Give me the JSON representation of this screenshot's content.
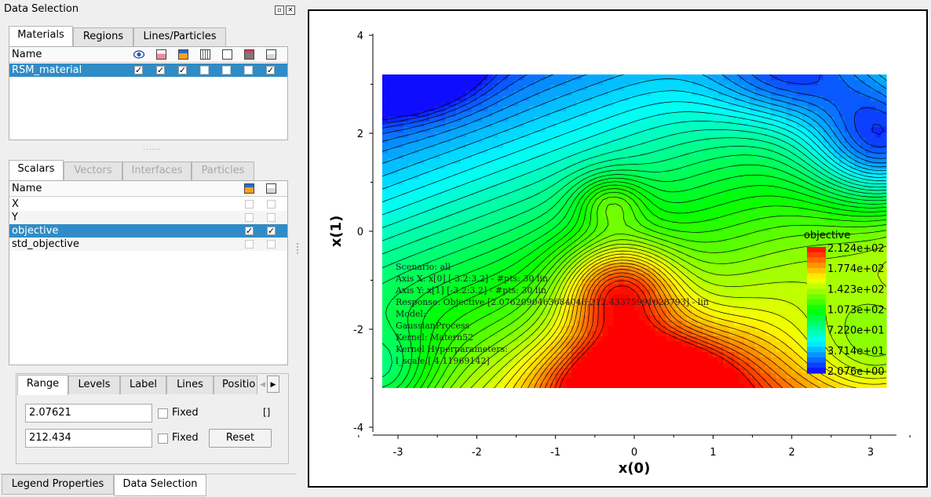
{
  "panel": {
    "title": "Data Selection",
    "float_icon": "float-icon",
    "close_icon": "close-icon"
  },
  "top_tabs": [
    {
      "label": "Materials",
      "active": true
    },
    {
      "label": "Regions",
      "active": false
    },
    {
      "label": "Lines/Particles",
      "active": false
    }
  ],
  "materials_table": {
    "header_name": "Name",
    "header_icons": [
      "eye-icon",
      "pink-box-icon",
      "orange-box-icon",
      "lattice-box-icon",
      "empty-box-icon",
      "stack-box-icon",
      "export-box-icon"
    ],
    "rows": [
      {
        "name": "RSM_material",
        "checks": [
          true,
          true,
          true,
          false,
          false,
          false,
          true
        ],
        "selected": true
      }
    ]
  },
  "splitter_grip": "......",
  "mid_tabs": [
    {
      "label": "Scalars",
      "active": true,
      "disabled": false
    },
    {
      "label": "Vectors",
      "active": false,
      "disabled": true
    },
    {
      "label": "Interfaces",
      "active": false,
      "disabled": true
    },
    {
      "label": "Particles",
      "active": false,
      "disabled": true
    }
  ],
  "scalars_table": {
    "header_name": "Name",
    "header_icons": [
      "orange-box-icon",
      "export-box-icon"
    ],
    "rows": [
      {
        "name": "X",
        "checks": [
          false,
          false
        ],
        "selected": false
      },
      {
        "name": "Y",
        "checks": [
          false,
          false
        ],
        "selected": false
      },
      {
        "name": "objective",
        "checks": [
          true,
          true
        ],
        "selected": true
      },
      {
        "name": "std_objective",
        "checks": [
          false,
          false
        ],
        "selected": false
      }
    ]
  },
  "range_tabs": [
    {
      "label": "Range",
      "active": true
    },
    {
      "label": "Levels",
      "active": false
    },
    {
      "label": "Label",
      "active": false
    },
    {
      "label": "Lines",
      "active": false
    },
    {
      "label": "Positio",
      "active": false
    }
  ],
  "range": {
    "min_value": "2.07621",
    "max_value": "212.434",
    "fixed_label": "Fixed",
    "min_fixed": false,
    "max_fixed": false,
    "brackets": "[]",
    "reset_label": "Reset"
  },
  "bottom_tabs": [
    {
      "label": "Legend Properties",
      "active": false
    },
    {
      "label": "Data Selection",
      "active": true
    }
  ],
  "chart_data": {
    "type": "heatmap",
    "subtype": "filled contour",
    "title": "",
    "xlabel": "x(0)",
    "ylabel": "x(1)",
    "xlim": [
      -3.2,
      3.2
    ],
    "ylim": [
      -4,
      4
    ],
    "data_extent": {
      "x": [
        -3.2,
        3.2
      ],
      "y": [
        -3.2,
        3.2
      ]
    },
    "xticks": [
      -3,
      -2,
      -1,
      0,
      1,
      2,
      3
    ],
    "yticks": [
      -4,
      -2,
      0,
      2,
      4
    ],
    "grid": false,
    "colormap": [
      "#1000ff",
      "#00ffff",
      "#00ff00",
      "#ffff00",
      "#ff0000"
    ],
    "value_range": [
      2.076,
      212.4
    ],
    "legend": {
      "title": "objective",
      "placement": "right",
      "labels": [
        "2.124e+02",
        "1.774e+02",
        "1.423e+02",
        "1.073e+02",
        "7.220e+01",
        "3.714e+01",
        "2.076e+00"
      ]
    },
    "annotation_lines": [
      "Scenario: all",
      "Axis X: x[0] [-3.2:3.2] - #pts: 30 lin",
      "Axis Y: x[1] [-3.2:3.2] - #pts: 30 lin",
      "Response: Objective [2.0762090463684046:212.43375991628793] - lin",
      "Model:",
      "GaussianProcess",
      "Kernel: Matern52",
      "Kernel Hyperparameters:",
      "  l_scale:[ 4.11969142]"
    ]
  }
}
